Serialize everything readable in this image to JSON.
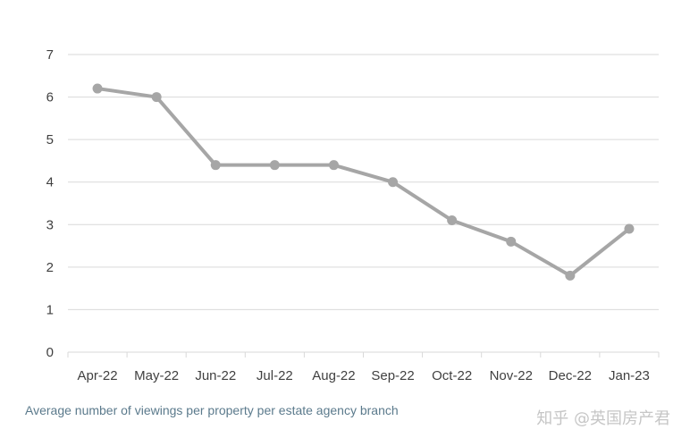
{
  "chart_data": {
    "type": "line",
    "categories": [
      "Apr-22",
      "May-22",
      "Jun-22",
      "Jul-22",
      "Aug-22",
      "Sep-22",
      "Oct-22",
      "Nov-22",
      "Dec-22",
      "Jan-23"
    ],
    "series": [
      {
        "values": [
          6.2,
          6.0,
          4.4,
          4.4,
          4.4,
          4.0,
          3.1,
          2.6,
          1.8,
          2.9
        ]
      }
    ],
    "ylim": [
      0,
      7
    ],
    "yticks": [
      0,
      1,
      2,
      3,
      4,
      5,
      6,
      7
    ],
    "grid": true,
    "line_color": "#a6a6a6",
    "grid_color": "#d9d9d9"
  },
  "caption": "Average number of viewings per property per estate agency branch",
  "watermark": "知乎 @英国房产君"
}
